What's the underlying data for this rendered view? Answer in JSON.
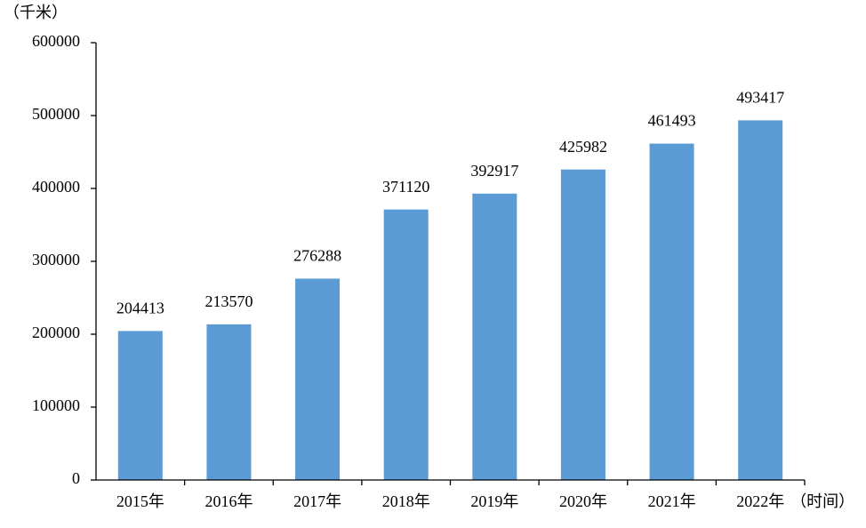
{
  "chart_data": {
    "type": "bar",
    "ylabel": "（千米）",
    "xlabel": "（时间）",
    "categories": [
      "2015年",
      "2016年",
      "2017年",
      "2018年",
      "2019年",
      "2020年",
      "2021年",
      "2022年"
    ],
    "values": [
      204413,
      213570,
      276288,
      371120,
      392917,
      425982,
      461493,
      493417
    ],
    "color": "#5b9bd5",
    "ylim": [
      0,
      600000
    ],
    "yticks": [
      0,
      100000,
      200000,
      300000,
      400000,
      500000,
      600000
    ],
    "grid": false
  }
}
